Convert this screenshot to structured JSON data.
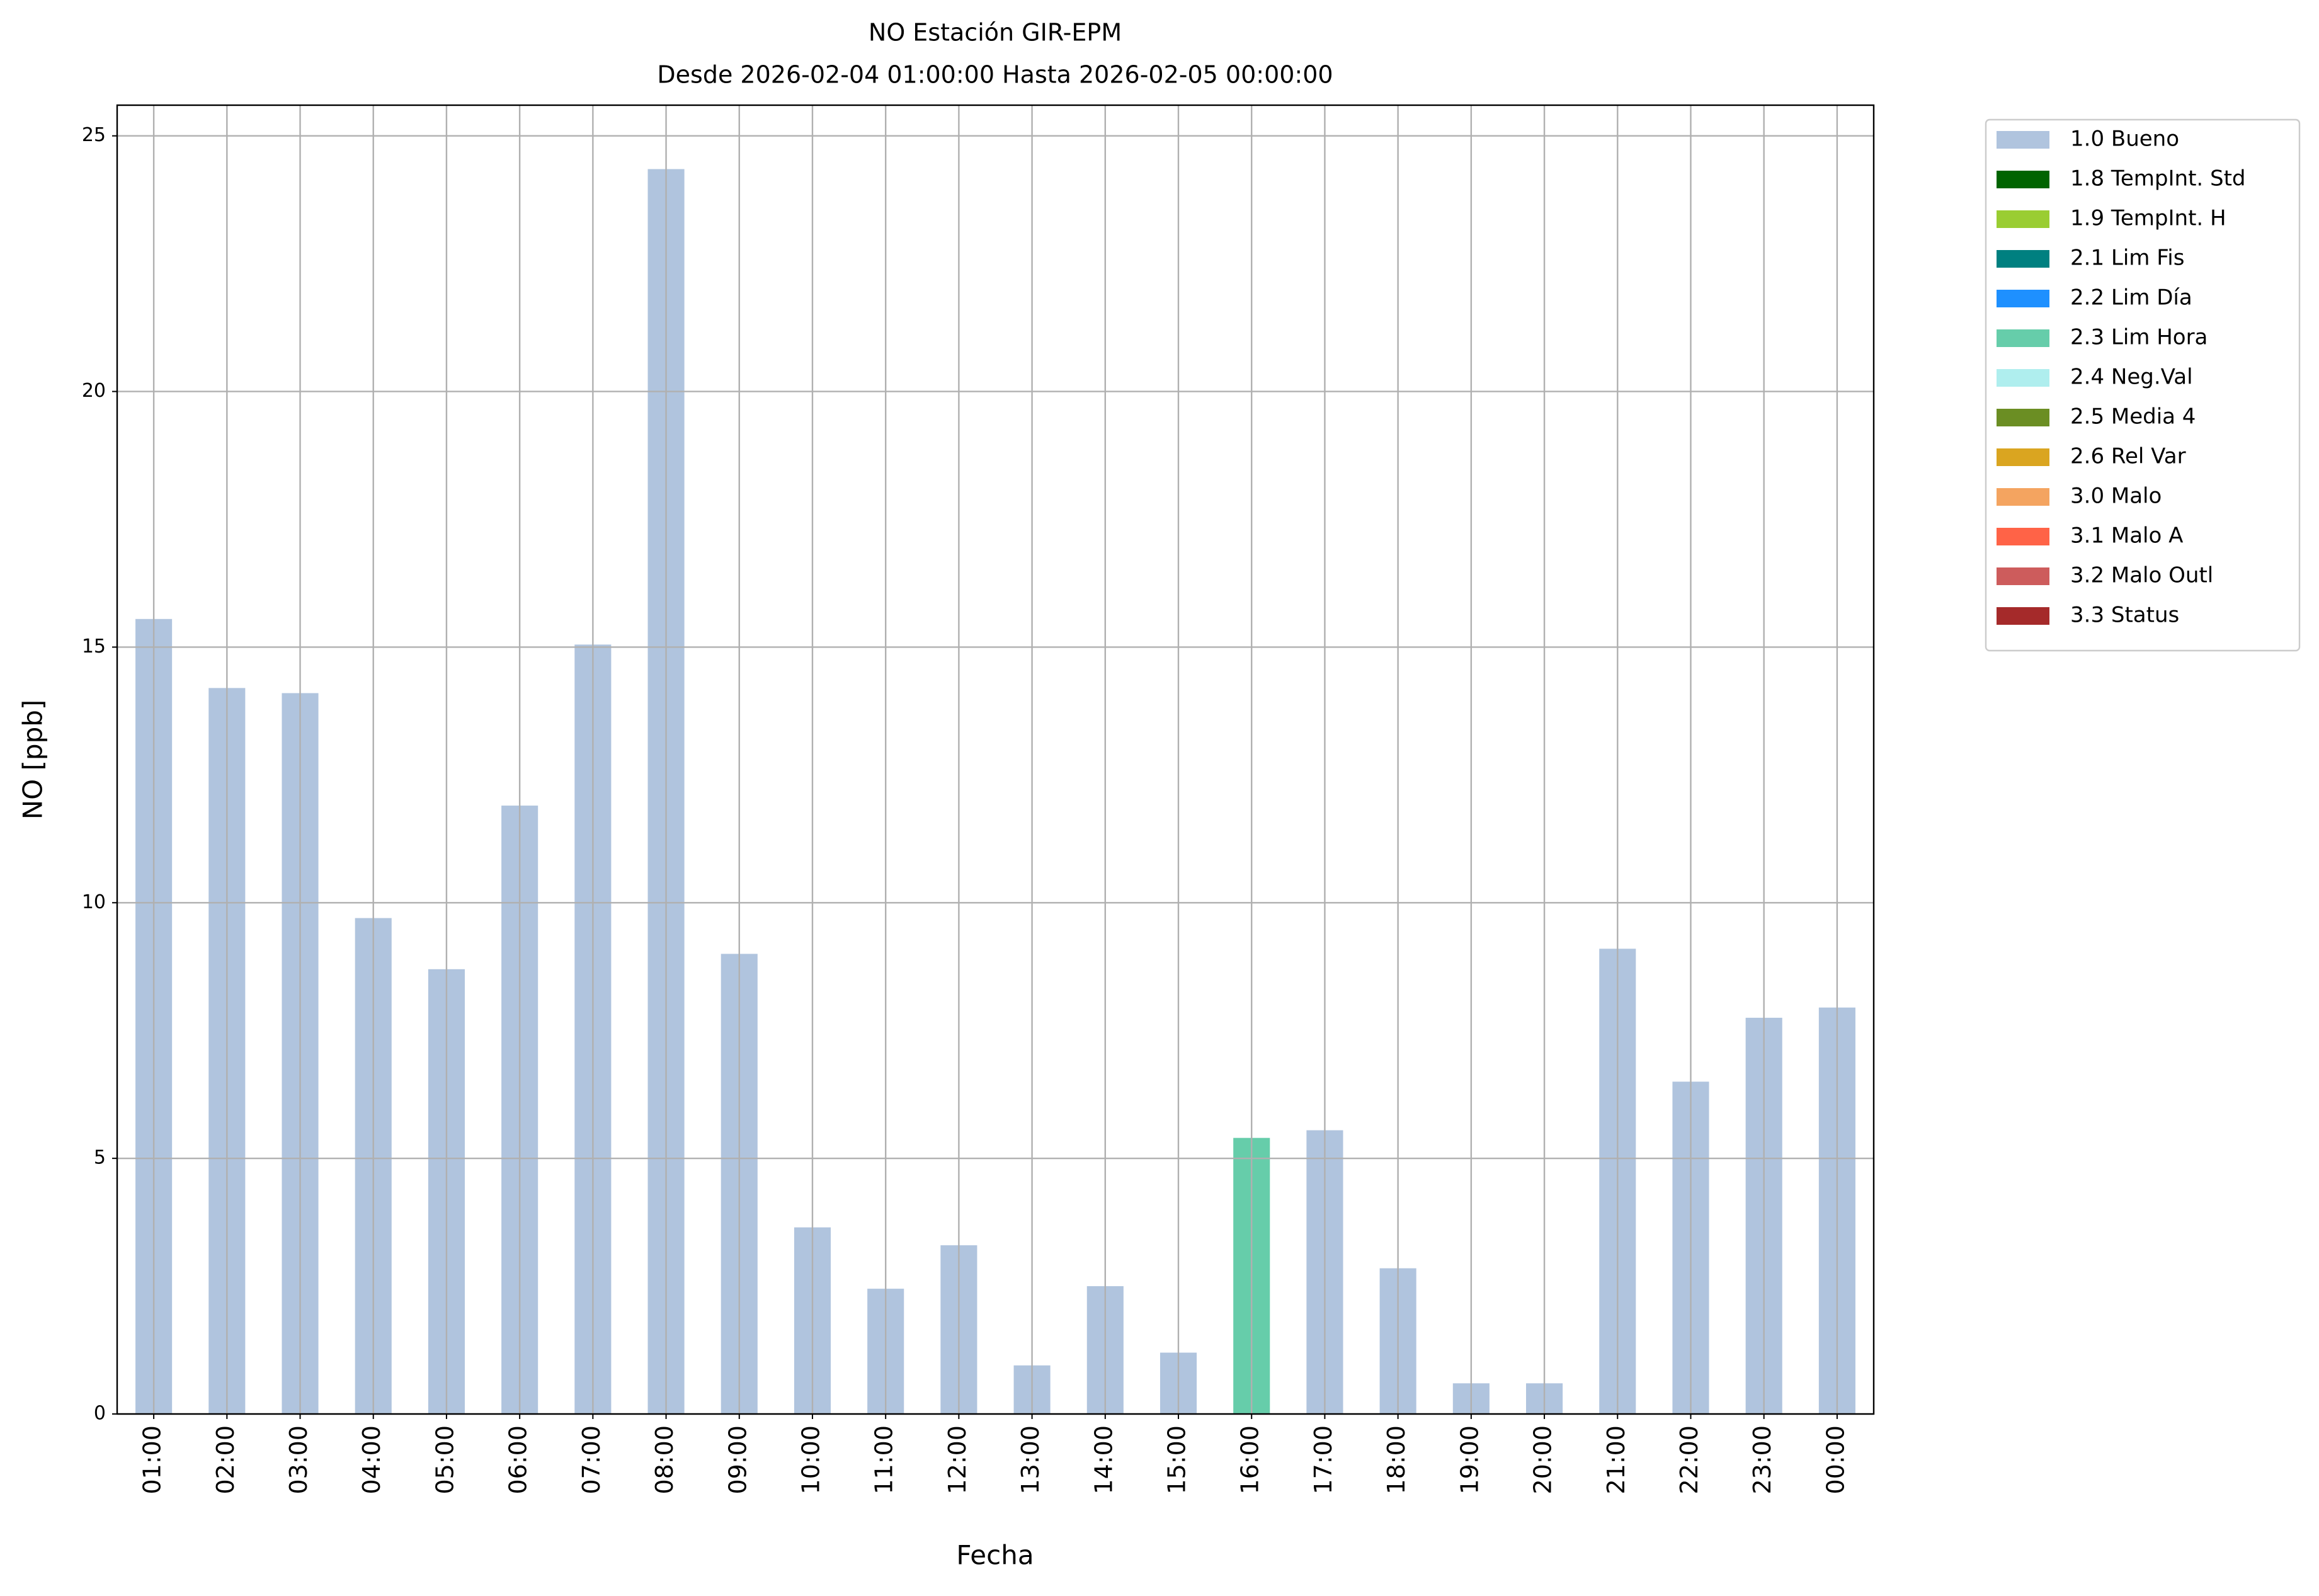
{
  "chart_data": {
    "type": "bar",
    "stacked": true,
    "title": "NO Estación GIR-EPM",
    "subtitle": "Desde 2026-02-04 01:00:00 Hasta 2026-02-05 00:00:00",
    "x_label": "Fecha",
    "y_label": "NO [ppb]",
    "categories": [
      "01:00",
      "02:00",
      "03:00",
      "04:00",
      "05:00",
      "06:00",
      "07:00",
      "08:00",
      "09:00",
      "10:00",
      "11:00",
      "12:00",
      "13:00",
      "14:00",
      "15:00",
      "16:00",
      "17:00",
      "18:00",
      "19:00",
      "20:00",
      "21:00",
      "22:00",
      "23:00",
      "00:00"
    ],
    "series": [
      {
        "name": "1.0 Bueno",
        "color": "#b0c4de",
        "values": [
          15.55,
          14.2,
          14.1,
          9.7,
          8.7,
          11.9,
          15.05,
          24.35,
          9.0,
          3.65,
          2.45,
          3.3,
          0.95,
          2.5,
          1.2,
          null,
          5.55,
          2.85,
          0.6,
          0.6,
          9.1,
          6.5,
          7.75,
          7.95
        ]
      },
      {
        "name": "1.8 TempInt. Std",
        "color": "#006400",
        "values": [
          null,
          null,
          null,
          null,
          null,
          null,
          null,
          null,
          null,
          null,
          null,
          null,
          null,
          null,
          null,
          null,
          null,
          null,
          null,
          null,
          null,
          null,
          null,
          null
        ]
      },
      {
        "name": "1.9 TempInt. H",
        "color": "#9acd32",
        "values": [
          null,
          null,
          null,
          null,
          null,
          null,
          null,
          null,
          null,
          null,
          null,
          null,
          null,
          null,
          null,
          null,
          null,
          null,
          null,
          null,
          null,
          null,
          null,
          null
        ]
      },
      {
        "name": "2.1 Lim Fis",
        "color": "#008080",
        "values": [
          null,
          null,
          null,
          null,
          null,
          null,
          null,
          null,
          null,
          null,
          null,
          null,
          null,
          null,
          null,
          null,
          null,
          null,
          null,
          null,
          null,
          null,
          null,
          null
        ]
      },
      {
        "name": "2.2 Lim Día",
        "color": "#1e90ff",
        "values": [
          null,
          null,
          null,
          null,
          null,
          null,
          null,
          null,
          null,
          null,
          null,
          null,
          null,
          null,
          null,
          null,
          null,
          null,
          null,
          null,
          null,
          null,
          null,
          null
        ]
      },
      {
        "name": "2.3 Lim Hora",
        "color": "#66cdaa",
        "values": [
          null,
          null,
          null,
          null,
          null,
          null,
          null,
          null,
          null,
          null,
          null,
          null,
          null,
          null,
          null,
          5.4,
          null,
          null,
          null,
          null,
          null,
          null,
          null,
          null
        ]
      },
      {
        "name": "2.4 Neg.Val",
        "color": "#afeeee",
        "values": [
          null,
          null,
          null,
          null,
          null,
          null,
          null,
          null,
          null,
          null,
          null,
          null,
          null,
          null,
          null,
          null,
          null,
          null,
          null,
          null,
          null,
          null,
          null,
          null
        ]
      },
      {
        "name": "2.5 Media 4",
        "color": "#6b8e23",
        "values": [
          null,
          null,
          null,
          null,
          null,
          null,
          null,
          null,
          null,
          null,
          null,
          null,
          null,
          null,
          null,
          null,
          null,
          null,
          null,
          null,
          null,
          null,
          null,
          null
        ]
      },
      {
        "name": "2.6 Rel Var",
        "color": "#daa520",
        "values": [
          null,
          null,
          null,
          null,
          null,
          null,
          null,
          null,
          null,
          null,
          null,
          null,
          null,
          null,
          null,
          null,
          null,
          null,
          null,
          null,
          null,
          null,
          null,
          null
        ]
      },
      {
        "name": "3.0 Malo",
        "color": "#f4a460",
        "values": [
          null,
          null,
          null,
          null,
          null,
          null,
          null,
          null,
          null,
          null,
          null,
          null,
          null,
          null,
          null,
          null,
          null,
          null,
          null,
          null,
          null,
          null,
          null,
          null
        ]
      },
      {
        "name": "3.1 Malo A",
        "color": "#ff6347",
        "values": [
          null,
          null,
          null,
          null,
          null,
          null,
          null,
          null,
          null,
          null,
          null,
          null,
          null,
          null,
          null,
          null,
          null,
          null,
          null,
          null,
          null,
          null,
          null,
          null
        ]
      },
      {
        "name": "3.2 Malo Outl",
        "color": "#cd5c5c",
        "values": [
          null,
          null,
          null,
          null,
          null,
          null,
          null,
          null,
          null,
          null,
          null,
          null,
          null,
          null,
          null,
          null,
          null,
          null,
          null,
          null,
          null,
          null,
          null,
          null
        ]
      },
      {
        "name": "3.3 Status",
        "color": "#a52a2a",
        "values": [
          null,
          null,
          null,
          null,
          null,
          null,
          null,
          null,
          null,
          null,
          null,
          null,
          null,
          null,
          null,
          null,
          null,
          null,
          null,
          null,
          null,
          null,
          null,
          null
        ]
      }
    ],
    "ylim": [
      0,
      25.6
    ],
    "yticks": [
      0,
      5,
      10,
      15,
      20,
      25
    ],
    "grid": true,
    "legend": "outside right"
  }
}
